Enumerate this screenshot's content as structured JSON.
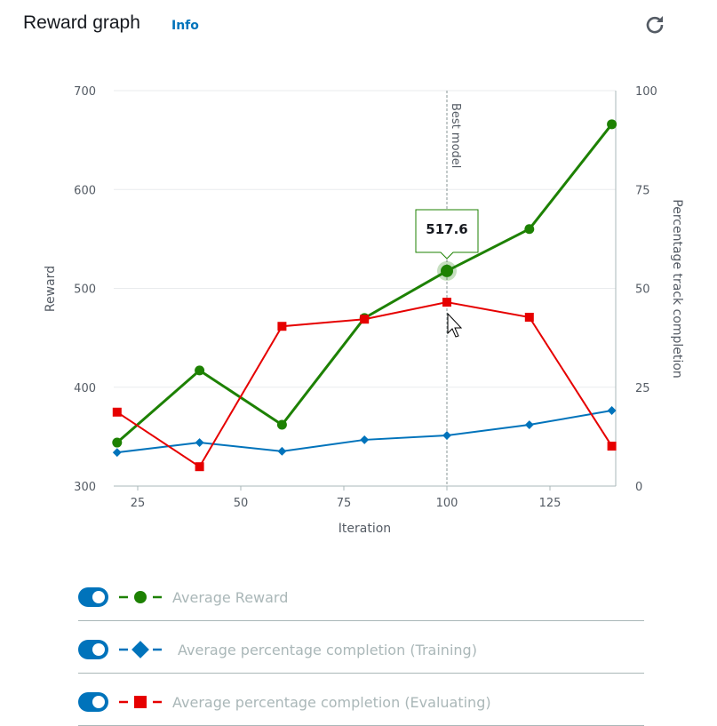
{
  "header": {
    "title": "Reward graph",
    "info_label": "Info",
    "refresh_icon": "refresh-icon"
  },
  "chart_data": {
    "type": "line",
    "xlabel": "Iteration",
    "ylabel": "Reward",
    "y2label": "Percentage track completion",
    "x": [
      20,
      40,
      60,
      80,
      100,
      120,
      140
    ],
    "xlim": [
      15,
      140
    ],
    "xticks": [
      25,
      50,
      75,
      100,
      125
    ],
    "ylim": [
      300,
      700
    ],
    "yticks": [
      300,
      400,
      500,
      600,
      700
    ],
    "y2lim": [
      0,
      100
    ],
    "y2ticks": [
      0,
      25,
      50,
      75,
      100
    ],
    "grid": true,
    "annotation": {
      "x": 100,
      "label": "Best model"
    },
    "tooltip": {
      "x": 100,
      "value": "517.6"
    },
    "series": [
      {
        "name": "Average Reward",
        "axis": "left",
        "color": "#1d8102",
        "marker": "circle",
        "values": [
          344,
          417,
          362,
          470,
          517.6,
          560,
          666
        ]
      },
      {
        "name": "Average percentage completion (Training)",
        "axis": "right",
        "color": "#0073bb",
        "marker": "diamond",
        "values": [
          8.5,
          11,
          8.8,
          11.7,
          12.8,
          15.5,
          19.1
        ]
      },
      {
        "name": "Average percentage completion (Evaluating)",
        "axis": "right",
        "color": "#e60000",
        "marker": "square",
        "values": [
          18.7,
          4.9,
          40.4,
          42.2,
          46.5,
          42.7,
          10.1
        ]
      }
    ]
  }
}
